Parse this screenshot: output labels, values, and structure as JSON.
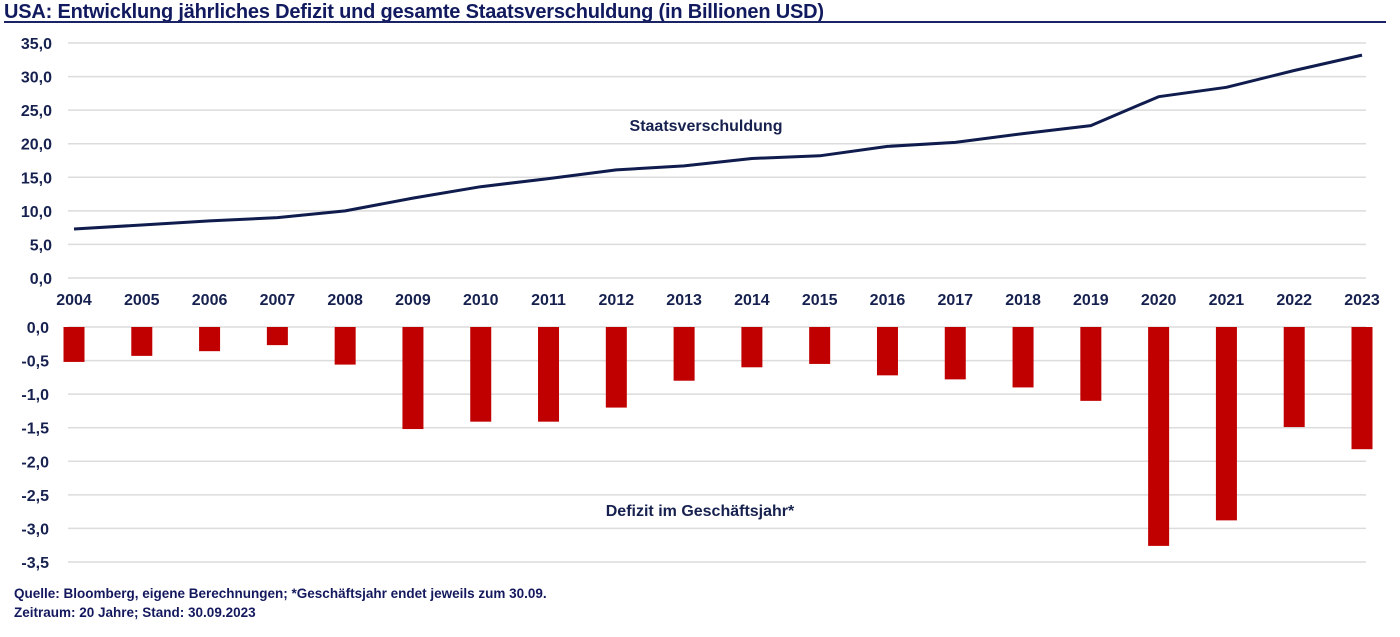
{
  "title": "USA: Entwicklung jährliches Defizit und gesamte Staatsverschuldung (in Billionen USD)",
  "footer": {
    "line1": "Quelle: Bloomberg, eigene Berechnungen; *Geschäftsjahr endet jeweils zum 30.09.",
    "line2": "Zeitraum: 20 Jahre; Stand: 30.09.2023"
  },
  "colors": {
    "debt_line": "#0f1c4d",
    "deficit_bar": "#c00000",
    "debt_label": "#111a5e",
    "deficit_label": "#9b0a1e"
  },
  "chart_data": [
    {
      "type": "line",
      "title": "Staatsverschuldung",
      "annotation": "Staatsverschuldung",
      "categories": [
        "2004",
        "2005",
        "2006",
        "2007",
        "2008",
        "2009",
        "2010",
        "2011",
        "2012",
        "2013",
        "2014",
        "2015",
        "2016",
        "2017",
        "2018",
        "2019",
        "2020",
        "2021",
        "2022",
        "2023"
      ],
      "values": [
        7.3,
        7.9,
        8.5,
        9.0,
        10.0,
        11.9,
        13.6,
        14.8,
        16.1,
        16.7,
        17.8,
        18.2,
        19.6,
        20.2,
        21.5,
        22.7,
        27.0,
        28.4,
        30.9,
        33.2
      ],
      "ylim": [
        0,
        35
      ],
      "yticks": [
        "35,0",
        "30,0",
        "25,0",
        "20,0",
        "15,0",
        "10,0",
        "5,0",
        "0,0"
      ],
      "ytick_values": [
        35,
        30,
        25,
        20,
        15,
        10,
        5,
        0
      ],
      "grid": true
    },
    {
      "type": "bar",
      "title": "Defizit im Geschäftsjahr*",
      "annotation": "Defizit im Geschäftsjahr*",
      "categories": [
        "2004",
        "2005",
        "2006",
        "2007",
        "2008",
        "2009",
        "2010",
        "2011",
        "2012",
        "2013",
        "2014",
        "2015",
        "2016",
        "2017",
        "2018",
        "2019",
        "2020",
        "2021",
        "2022",
        "2023"
      ],
      "values": [
        -0.52,
        -0.43,
        -0.36,
        -0.27,
        -0.56,
        -1.52,
        -1.41,
        -1.41,
        -1.2,
        -0.8,
        -0.6,
        -0.55,
        -0.72,
        -0.78,
        -0.9,
        -1.1,
        -3.26,
        -2.88,
        -1.49,
        -1.82
      ],
      "ylim": [
        -3.5,
        0
      ],
      "yticks": [
        "0,0",
        "-0,5",
        "-1,0",
        "-1,5",
        "-2,0",
        "-2,5",
        "-3,0",
        "-3,5"
      ],
      "ytick_values": [
        0,
        -0.5,
        -1,
        -1.5,
        -2,
        -2.5,
        -3,
        -3.5
      ],
      "grid": true
    }
  ]
}
